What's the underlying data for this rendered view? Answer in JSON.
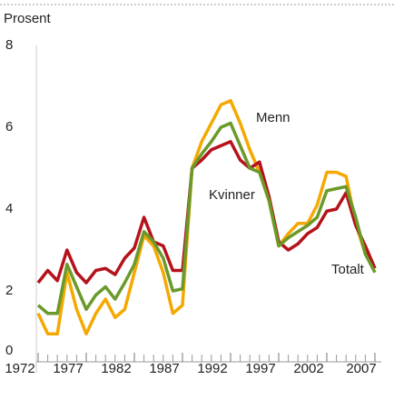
{
  "chart_data": {
    "type": "line",
    "y_label": "Prosent",
    "x": [
      1972,
      1973,
      1974,
      1975,
      1976,
      1977,
      1978,
      1979,
      1980,
      1981,
      1982,
      1983,
      1984,
      1985,
      1986,
      1987,
      1988,
      1989,
      1990,
      1991,
      1992,
      1993,
      1994,
      1995,
      1996,
      1997,
      1998,
      1999,
      2000,
      2001,
      2002,
      2003,
      2004,
      2005,
      2006,
      2007
    ],
    "series": [
      {
        "name": "Menn",
        "color": "#f5a800",
        "values": [
          1.45,
          0.95,
          0.95,
          2.45,
          1.55,
          0.95,
          1.45,
          1.8,
          1.35,
          1.55,
          2.45,
          3.35,
          3.1,
          2.45,
          1.45,
          1.65,
          5.0,
          5.65,
          6.1,
          6.55,
          6.65,
          6.1,
          5.45,
          4.9,
          4.2,
          3.1,
          3.4,
          3.65,
          3.65,
          4.1,
          4.9,
          4.9,
          4.8,
          3.65,
          2.9,
          2.55
        ]
      },
      {
        "name": "Kvinner",
        "color": "#b5121b",
        "values": [
          2.2,
          2.5,
          2.25,
          3.0,
          2.45,
          2.2,
          2.5,
          2.55,
          2.4,
          2.8,
          3.05,
          3.8,
          3.2,
          3.1,
          2.5,
          2.5,
          5.0,
          5.2,
          5.45,
          5.55,
          5.65,
          5.2,
          5.0,
          5.15,
          4.3,
          3.2,
          3.0,
          3.15,
          3.4,
          3.55,
          3.95,
          4.0,
          4.4,
          3.6,
          3.1,
          2.55
        ]
      },
      {
        "name": "Totalt",
        "color": "#6a9a2a",
        "values": [
          1.65,
          1.45,
          1.45,
          2.65,
          2.1,
          1.55,
          1.9,
          2.1,
          1.8,
          2.2,
          2.65,
          3.45,
          3.2,
          2.8,
          2.0,
          2.05,
          5.0,
          5.35,
          5.65,
          6.0,
          6.1,
          5.55,
          5.0,
          4.9,
          4.2,
          3.1,
          3.3,
          3.45,
          3.6,
          3.8,
          4.45,
          4.5,
          4.55,
          3.8,
          2.9,
          2.45
        ]
      }
    ],
    "xlim": [
      1972,
      2007
    ],
    "xticks": [
      1972,
      1977,
      1982,
      1987,
      1992,
      1997,
      2002,
      2007
    ],
    "ylim": [
      0,
      8
    ],
    "yticks": [
      0,
      2,
      4,
      6,
      8
    ]
  }
}
